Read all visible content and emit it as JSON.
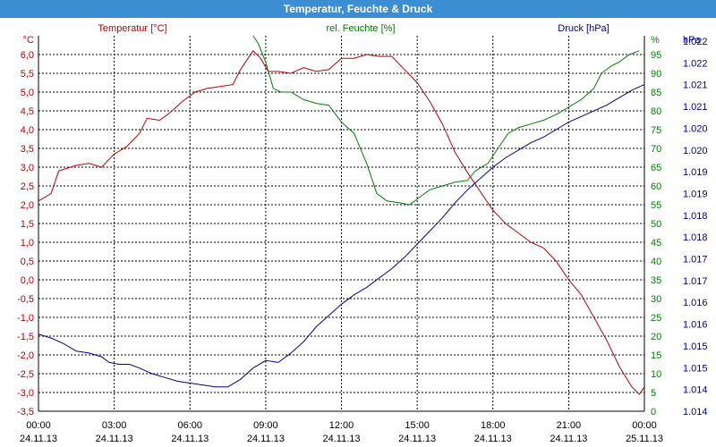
{
  "window": {
    "title": "Temperatur, Feuchte & Druck"
  },
  "colors": {
    "titlebar": "#3a8ed1",
    "temperature": "#c00000",
    "humidity": "#008000",
    "pressure": "#000099",
    "grid": "#000000"
  },
  "chart_data": {
    "type": "line",
    "grid": true,
    "axes": {
      "left": {
        "unit": "°C",
        "min": -3.5,
        "max": 6.5,
        "step": 0.5,
        "ticks": [
          "-3,5",
          "-3,0",
          "-2,5",
          "-2,0",
          "-1,5",
          "-1,0",
          "-0,5",
          "0,0",
          "0,5",
          "1,0",
          "1,5",
          "2,0",
          "2,5",
          "3,0",
          "3,5",
          "4,0",
          "4,5",
          "5,0",
          "5,5",
          "6,0"
        ]
      },
      "middle": {
        "unit": "%",
        "min": 0,
        "max": 100,
        "step": 5,
        "ticks": [
          "0",
          "5",
          "10",
          "15",
          "20",
          "25",
          "30",
          "35",
          "40",
          "45",
          "50",
          "55",
          "60",
          "65",
          "70",
          "75",
          "80",
          "85",
          "90",
          "95"
        ]
      },
      "right": {
        "unit": "hPa",
        "min": 1013.5,
        "max": 1023.5,
        "ticks": [
          "1.014",
          "1.014",
          "1.015",
          "1.015",
          "1.016",
          "1.016",
          "1.017",
          "1.017",
          "1.018",
          "1.018",
          "1.019",
          "1.019",
          "1.020",
          "1.020",
          "1.021",
          "1.021",
          "1.022",
          "1.022"
        ]
      }
    },
    "x_ticks": [
      {
        "time": "00:00",
        "date": "24.11.13"
      },
      {
        "time": "03:00",
        "date": "24.11.13"
      },
      {
        "time": "06:00",
        "date": "24.11.13"
      },
      {
        "time": "09:00",
        "date": "24.11.13"
      },
      {
        "time": "12:00",
        "date": "24.11.13"
      },
      {
        "time": "15:00",
        "date": "24.11.13"
      },
      {
        "time": "18:00",
        "date": "24.11.13"
      },
      {
        "time": "21:00",
        "date": "24.11.13"
      },
      {
        "time": "00:00",
        "date": "25.11.13"
      }
    ],
    "x_range_hours": [
      0,
      24
    ],
    "series": [
      {
        "name": "Temperatur [°C]",
        "axis": "left",
        "color": "#c00000",
        "points": [
          [
            0,
            2.1
          ],
          [
            0.5,
            2.3
          ],
          [
            0.8,
            2.9
          ],
          [
            1.5,
            3.05
          ],
          [
            2,
            3.1
          ],
          [
            2.5,
            3.0
          ],
          [
            3,
            3.35
          ],
          [
            3.5,
            3.55
          ],
          [
            4,
            3.9
          ],
          [
            4.3,
            4.3
          ],
          [
            4.8,
            4.25
          ],
          [
            5.2,
            4.45
          ],
          [
            5.7,
            4.75
          ],
          [
            6.2,
            5.0
          ],
          [
            6.7,
            5.1
          ],
          [
            7.2,
            5.15
          ],
          [
            7.7,
            5.2
          ],
          [
            8.0,
            5.6
          ],
          [
            8.3,
            5.9
          ],
          [
            8.5,
            6.1
          ],
          [
            8.8,
            5.9
          ],
          [
            9.1,
            5.55
          ],
          [
            9.5,
            5.55
          ],
          [
            10.0,
            5.5
          ],
          [
            10.5,
            5.65
          ],
          [
            11.0,
            5.55
          ],
          [
            11.5,
            5.6
          ],
          [
            12.0,
            5.9
          ],
          [
            12.5,
            5.9
          ],
          [
            13.0,
            6.0
          ],
          [
            13.5,
            5.95
          ],
          [
            14.0,
            5.95
          ],
          [
            14.5,
            5.6
          ],
          [
            15.0,
            5.25
          ],
          [
            15.5,
            4.75
          ],
          [
            16.0,
            4.15
          ],
          [
            16.5,
            3.4
          ],
          [
            17.0,
            2.85
          ],
          [
            17.5,
            2.35
          ],
          [
            18.0,
            1.85
          ],
          [
            18.5,
            1.5
          ],
          [
            19.0,
            1.25
          ],
          [
            19.5,
            1.0
          ],
          [
            20.0,
            0.85
          ],
          [
            20.5,
            0.5
          ],
          [
            21.0,
            0.0
          ],
          [
            21.5,
            -0.4
          ],
          [
            22.0,
            -1.0
          ],
          [
            22.5,
            -1.6
          ],
          [
            23.0,
            -2.3
          ],
          [
            23.5,
            -2.85
          ],
          [
            23.8,
            -3.05
          ],
          [
            24.0,
            -2.85
          ]
        ]
      },
      {
        "name": "rel. Feuchte [%]",
        "axis": "middle",
        "color": "#008000",
        "points": [
          [
            8.5,
            100
          ],
          [
            8.7,
            98
          ],
          [
            9.0,
            93
          ],
          [
            9.3,
            86
          ],
          [
            9.6,
            85
          ],
          [
            10.0,
            85
          ],
          [
            10.5,
            83
          ],
          [
            11.0,
            82
          ],
          [
            11.5,
            81.5
          ],
          [
            12.0,
            77
          ],
          [
            12.5,
            74
          ],
          [
            13.0,
            66
          ],
          [
            13.4,
            58
          ],
          [
            13.8,
            56
          ],
          [
            14.3,
            55.5
          ],
          [
            14.7,
            55
          ],
          [
            15.1,
            57
          ],
          [
            15.5,
            59
          ],
          [
            16.0,
            60
          ],
          [
            16.5,
            61
          ],
          [
            17.0,
            61.5
          ],
          [
            17.3,
            64
          ],
          [
            17.8,
            66
          ],
          [
            18.2,
            70
          ],
          [
            18.6,
            74
          ],
          [
            19.0,
            75.5
          ],
          [
            19.5,
            76.5
          ],
          [
            20.0,
            77.5
          ],
          [
            20.5,
            79
          ],
          [
            21.0,
            81
          ],
          [
            21.5,
            83
          ],
          [
            22.0,
            86
          ],
          [
            22.3,
            90
          ],
          [
            22.7,
            92
          ],
          [
            23.0,
            93
          ],
          [
            23.4,
            95
          ],
          [
            23.8,
            96
          ]
        ]
      },
      {
        "name": "Druck [hPa]",
        "axis": "right",
        "color": "#000099",
        "points": [
          [
            0,
            1015.55
          ],
          [
            0.5,
            1015.45
          ],
          [
            1.0,
            1015.3
          ],
          [
            1.5,
            1015.1
          ],
          [
            2.0,
            1015.05
          ],
          [
            2.5,
            1014.95
          ],
          [
            2.8,
            1014.8
          ],
          [
            3.2,
            1014.75
          ],
          [
            3.6,
            1014.75
          ],
          [
            4.0,
            1014.65
          ],
          [
            4.5,
            1014.5
          ],
          [
            5.0,
            1014.4
          ],
          [
            5.5,
            1014.3
          ],
          [
            6.0,
            1014.25
          ],
          [
            6.5,
            1014.2
          ],
          [
            7.0,
            1014.15
          ],
          [
            7.5,
            1014.15
          ],
          [
            8.0,
            1014.35
          ],
          [
            8.5,
            1014.65
          ],
          [
            9.0,
            1014.85
          ],
          [
            9.5,
            1014.8
          ],
          [
            10.0,
            1015.05
          ],
          [
            10.5,
            1015.35
          ],
          [
            11.0,
            1015.75
          ],
          [
            11.5,
            1016.05
          ],
          [
            12.0,
            1016.35
          ],
          [
            12.5,
            1016.6
          ],
          [
            13.0,
            1016.8
          ],
          [
            13.5,
            1017.05
          ],
          [
            14.0,
            1017.3
          ],
          [
            14.5,
            1017.6
          ],
          [
            15.0,
            1017.95
          ],
          [
            15.5,
            1018.3
          ],
          [
            16.0,
            1018.65
          ],
          [
            16.5,
            1019.05
          ],
          [
            17.0,
            1019.4
          ],
          [
            17.5,
            1019.7
          ],
          [
            18.0,
            1020.0
          ],
          [
            18.5,
            1020.25
          ],
          [
            19.0,
            1020.45
          ],
          [
            19.5,
            1020.65
          ],
          [
            20.0,
            1020.8
          ],
          [
            20.5,
            1021.0
          ],
          [
            21.0,
            1021.2
          ],
          [
            21.5,
            1021.35
          ],
          [
            22.0,
            1021.5
          ],
          [
            22.5,
            1021.65
          ],
          [
            23.0,
            1021.85
          ],
          [
            23.5,
            1022.05
          ],
          [
            24.0,
            1022.2
          ]
        ]
      }
    ]
  }
}
